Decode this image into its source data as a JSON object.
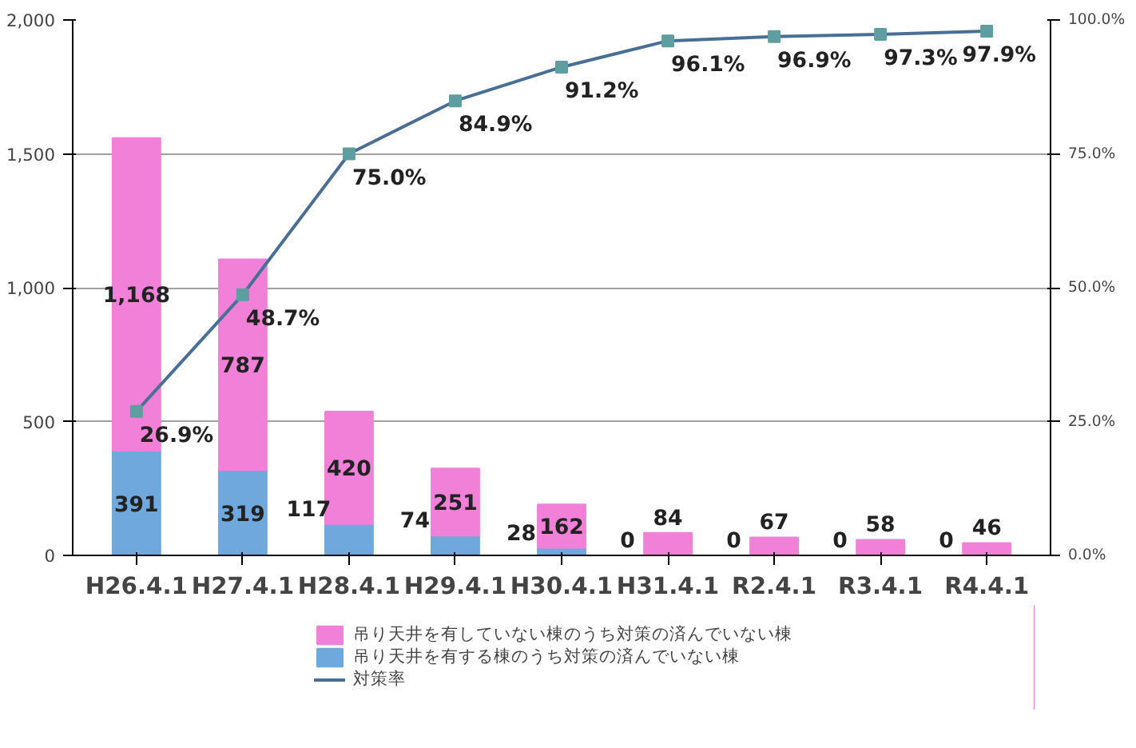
{
  "chart_data": {
    "type": "bar",
    "stacked": true,
    "categories": [
      "H26.4.1",
      "H27.4.1",
      "H28.4.1",
      "H29.4.1",
      "H30.4.1",
      "H31.4.1",
      "R2.4.1",
      "R3.4.1",
      "R4.4.1"
    ],
    "series": [
      {
        "name": "吊り天井を有する棟のうち対策の済んでいない棟",
        "color": "#6fa8dc",
        "values": [
          391,
          319,
          117,
          74,
          28,
          0,
          0,
          0,
          0
        ],
        "value_labels": [
          "391",
          "319",
          "117",
          "74",
          "28",
          "0",
          "0",
          "0",
          "0"
        ]
      },
      {
        "name": "吊り天井を有していない棟のうち対策の済んでいない棟",
        "color": "#f080d8",
        "values": [
          1168,
          787,
          420,
          251,
          162,
          84,
          67,
          58,
          46
        ],
        "value_labels": [
          "1,168",
          "787",
          "420",
          "251",
          "162",
          "84",
          "67",
          "58",
          "46"
        ]
      },
      {
        "name": "対策率",
        "type": "line",
        "axis": "y2",
        "color": "#4a6f95",
        "marker": "square",
        "values": [
          26.9,
          48.7,
          75.0,
          84.9,
          91.2,
          96.1,
          96.9,
          97.3,
          97.9
        ],
        "value_labels": [
          "26.9%",
          "48.7%",
          "75.0%",
          "84.9%",
          "91.2%",
          "96.1%",
          "96.9%",
          "97.3%",
          "97.9%"
        ]
      }
    ],
    "ylim": [
      0,
      2000
    ],
    "yticks": [
      0,
      {
        "value": 500,
        "label": "500"
      },
      {
        "value": 1000,
        "label": "1,000"
      },
      {
        "value": 1500,
        "label": "1,500"
      },
      {
        "value": 2000,
        "label": "2,000"
      }
    ],
    "y2lim": [
      0,
      100
    ],
    "y2ticks": [
      {
        "value": 0,
        "label": "0.0%"
      },
      {
        "value": 25,
        "label": "25.0%"
      },
      {
        "value": 50,
        "label": "50.0%"
      },
      {
        "value": 75,
        "label": "75.0%"
      },
      {
        "value": 100,
        "label": "100.0%"
      }
    ],
    "grid": "y",
    "legend": "bottom"
  }
}
